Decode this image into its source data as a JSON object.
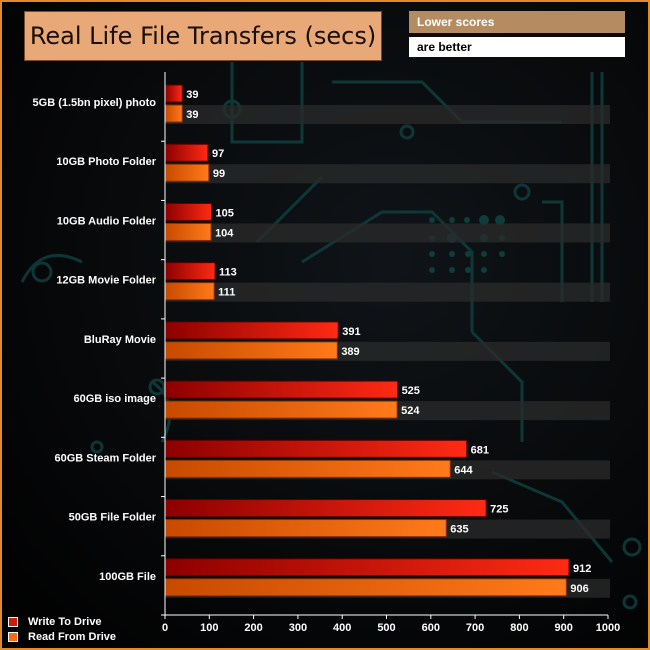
{
  "title": "Real Life File Transfers (secs)",
  "note": {
    "line1": "Lower scores",
    "line2": "are better"
  },
  "colors": {
    "write_dark": "#8c0000",
    "write_light": "#ff2a14",
    "read_dark": "#c84a00",
    "read_light": "#ff7a1a",
    "band": "#2b2b2b",
    "frame": "#e08a2a"
  },
  "legend": {
    "write": "Write To  Drive",
    "read": "Read From  Drive"
  },
  "chart_data": {
    "type": "bar",
    "orientation": "horizontal",
    "categories": [
      "5GB (1.5bn pixel) photo",
      "10GB Photo Folder",
      "10GB Audio Folder",
      "12GB Movie Folder",
      "BluRay Movie",
      "60GB iso image",
      "60GB Steam Folder",
      "50GB File Folder",
      "100GB File"
    ],
    "series": [
      {
        "name": "Write To  Drive",
        "values": [
          39,
          97,
          105,
          113,
          391,
          525,
          681,
          725,
          912
        ]
      },
      {
        "name": "Read From  Drive",
        "values": [
          39,
          99,
          104,
          111,
          389,
          524,
          644,
          635,
          906
        ]
      }
    ],
    "xlim": [
      0,
      1000
    ],
    "xticks": [
      0,
      100,
      200,
      300,
      400,
      500,
      600,
      700,
      800,
      900,
      1000
    ],
    "title": "Real Life File Transfers (secs)",
    "legend_position": "bottom-left",
    "grid": false
  }
}
